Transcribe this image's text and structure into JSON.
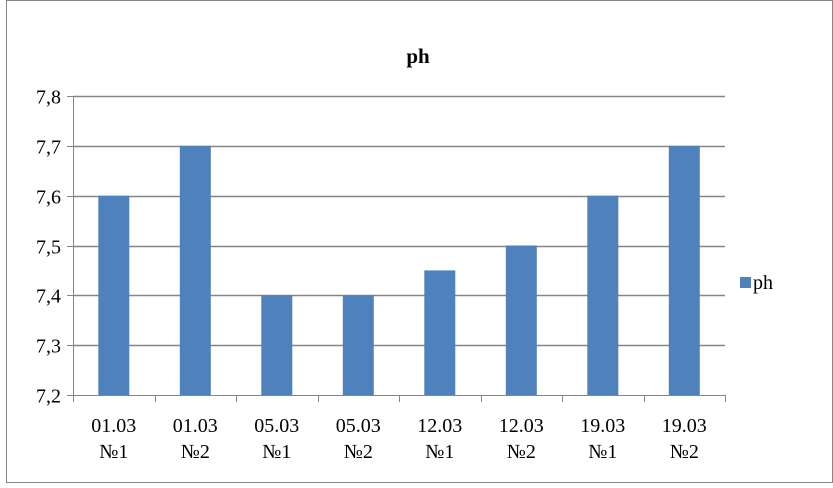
{
  "chart_data": {
    "type": "bar",
    "title": "ph",
    "categories": [
      [
        "01.03",
        "№1"
      ],
      [
        "01.03",
        "№2"
      ],
      [
        "05.03",
        "№1"
      ],
      [
        "05.03",
        "№2"
      ],
      [
        "12.03",
        "№1"
      ],
      [
        "12.03",
        "№2"
      ],
      [
        "19.03",
        "№1"
      ],
      [
        "19.03",
        "№2"
      ]
    ],
    "series": [
      {
        "name": "ph",
        "values": [
          7.6,
          7.7,
          7.4,
          7.4,
          7.45,
          7.5,
          7.6,
          7.7
        ]
      }
    ],
    "ylim": [
      7.2,
      7.8
    ],
    "yticks": [
      "7,2",
      "7,3",
      "7,4",
      "7,5",
      "7,6",
      "7,7",
      "7,8"
    ],
    "ytick_values": [
      7.2,
      7.3,
      7.4,
      7.5,
      7.6,
      7.7,
      7.8
    ],
    "grid": true,
    "legend_position": "right",
    "colors": {
      "bar": "#4f81bd",
      "grid": "#868686",
      "axis": "#868686",
      "border": "#868686"
    }
  }
}
